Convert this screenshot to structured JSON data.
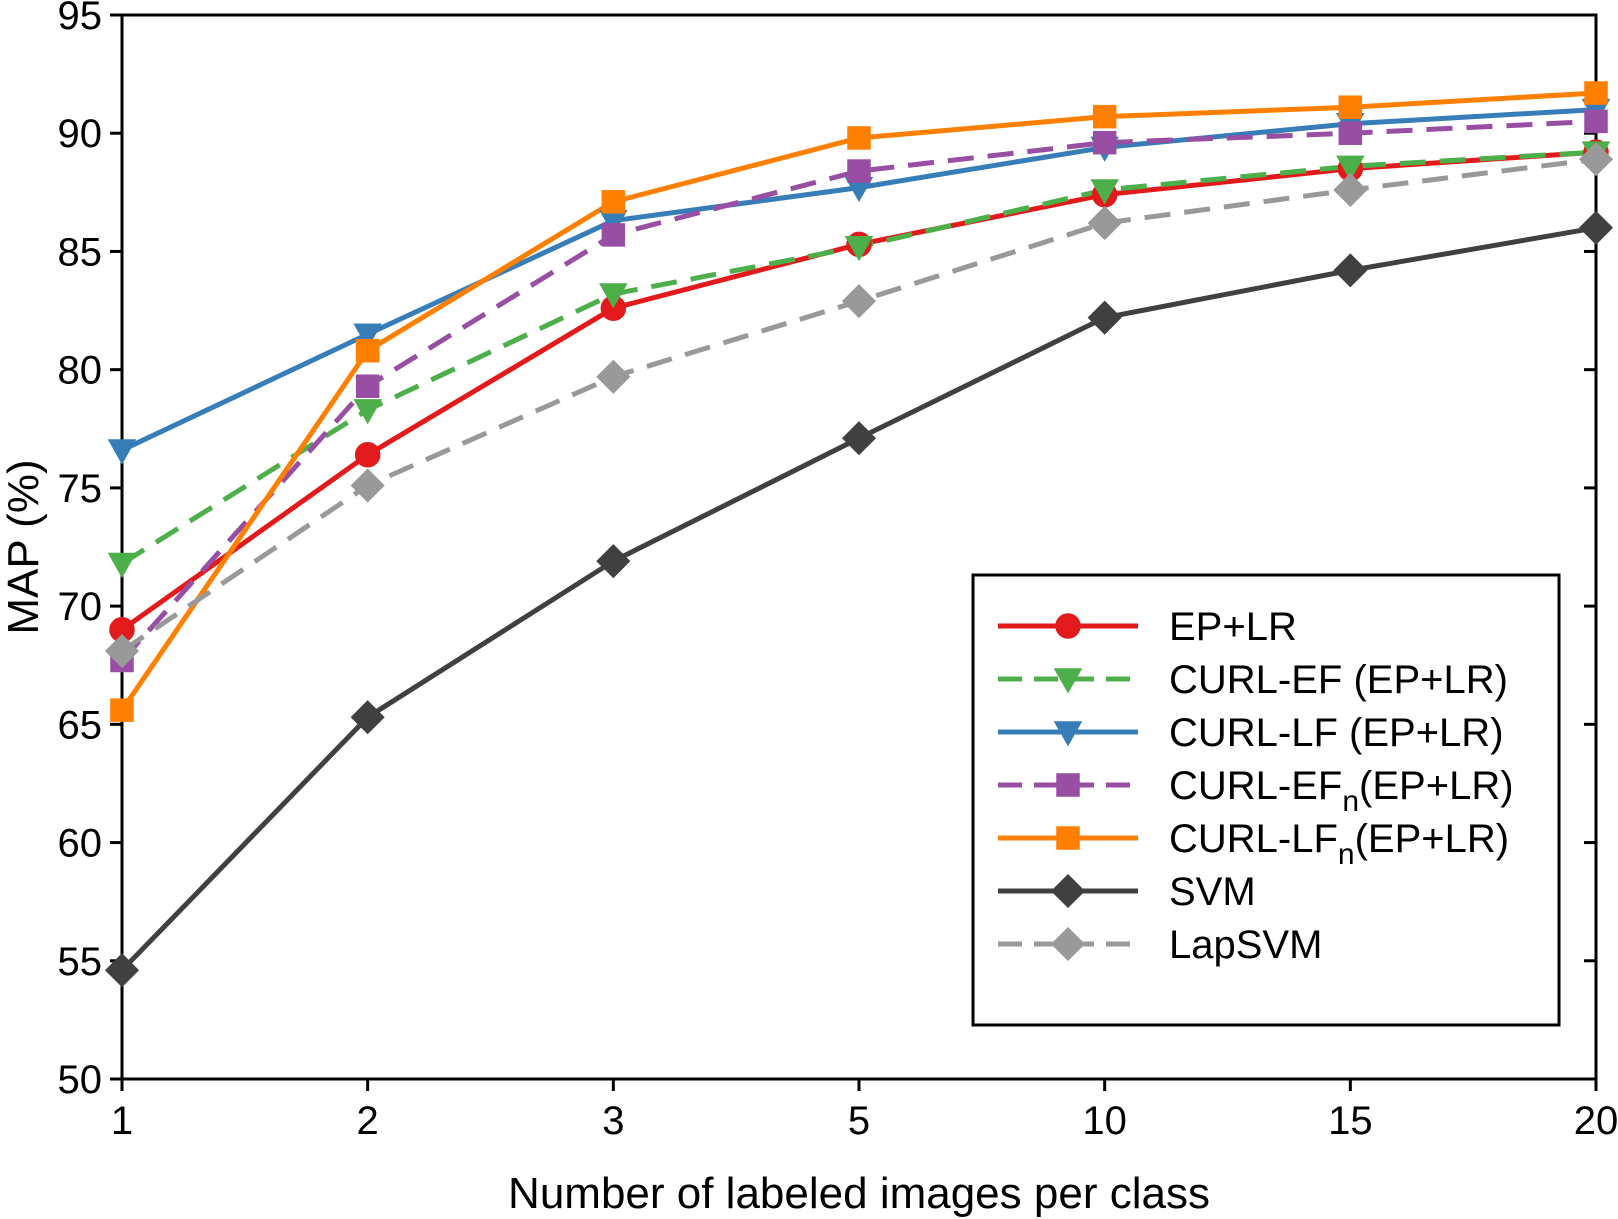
{
  "chart_data": {
    "type": "line",
    "title": "",
    "xlabel": "Number of labeled images per class",
    "ylabel": "MAP (%)",
    "categories": [
      "1",
      "2",
      "3",
      "5",
      "10",
      "15",
      "20"
    ],
    "ylim": [
      50,
      95
    ],
    "yticks": [
      50,
      55,
      60,
      65,
      70,
      75,
      80,
      85,
      90,
      95
    ],
    "grid": false,
    "legend_position": "bottom-right",
    "series": [
      {
        "name": "EP+LR",
        "legend_main": "EP+LR",
        "legend_sub": "",
        "legend_tail": "",
        "color": "#e31a1c",
        "marker": "circle",
        "dashed": false,
        "values": [
          69.0,
          76.4,
          82.6,
          85.3,
          87.4,
          88.5,
          89.2
        ]
      },
      {
        "name": "CURL-EF (EP+LR)",
        "legend_main": "CURL-EF (EP+LR)",
        "legend_sub": "",
        "legend_tail": "",
        "color": "#4daf4a",
        "marker": "triangle-down",
        "dashed": true,
        "values": [
          71.8,
          78.3,
          83.2,
          85.2,
          87.6,
          88.6,
          89.2
        ]
      },
      {
        "name": "CURL-LF (EP+LR)",
        "legend_main": "CURL-LF (EP+LR)",
        "legend_sub": "",
        "legend_tail": "",
        "color": "#377eb8",
        "marker": "triangle-down",
        "dashed": false,
        "values": [
          76.6,
          81.5,
          86.3,
          87.7,
          89.4,
          90.4,
          91.0
        ]
      },
      {
        "name": "CURL-EFn(EP+LR)",
        "legend_main": "CURL-EF",
        "legend_sub": "n",
        "legend_tail": "(EP+LR)",
        "color": "#984ea3",
        "marker": "square",
        "dashed": true,
        "values": [
          67.7,
          79.3,
          85.7,
          88.4,
          89.6,
          90.0,
          90.5
        ]
      },
      {
        "name": "CURL-LFn(EP+LR)",
        "legend_main": "CURL-LF",
        "legend_sub": "n",
        "legend_tail": "(EP+LR)",
        "color": "#ff7f00",
        "marker": "square",
        "dashed": false,
        "values": [
          65.6,
          80.8,
          87.1,
          89.8,
          90.7,
          91.1,
          91.7
        ]
      },
      {
        "name": "SVM",
        "legend_main": "SVM",
        "legend_sub": "",
        "legend_tail": "",
        "color": "#404040",
        "marker": "diamond",
        "dashed": false,
        "values": [
          54.6,
          65.3,
          71.9,
          77.1,
          82.2,
          84.2,
          86.0
        ]
      },
      {
        "name": "LapSVM",
        "legend_main": "LapSVM",
        "legend_sub": "",
        "legend_tail": "",
        "color": "#999999",
        "marker": "diamond",
        "dashed": true,
        "values": [
          68.1,
          75.1,
          79.7,
          82.9,
          86.2,
          87.6,
          88.9
        ]
      }
    ]
  }
}
